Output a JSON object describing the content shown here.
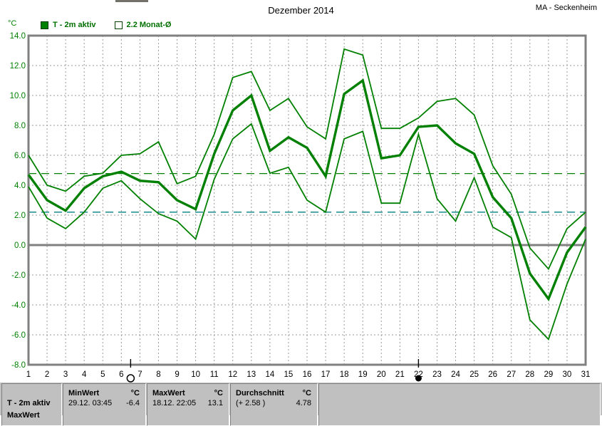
{
  "header": {
    "title": "Dezember 2014",
    "station": "MA - Seckenheim",
    "unit_label": "°C"
  },
  "legend": {
    "items": [
      {
        "label": "T - 2m aktiv",
        "swatch": "filled-green-square",
        "color": "#008000"
      },
      {
        "label": "2.2 Monat-Ø",
        "swatch": "outline-square",
        "color": "#008000"
      }
    ]
  },
  "chart_data": {
    "type": "line",
    "title": "Dezember 2014",
    "xlabel": "",
    "ylabel": "°C",
    "x": [
      1,
      2,
      3,
      4,
      5,
      6,
      7,
      8,
      9,
      10,
      11,
      12,
      13,
      14,
      15,
      16,
      17,
      18,
      19,
      20,
      21,
      22,
      23,
      24,
      25,
      26,
      27,
      28,
      29,
      30,
      31
    ],
    "ylim": [
      -8,
      14
    ],
    "ytick_labels": [
      "14.0",
      "12.0",
      "10.0",
      "8.0",
      "6.0",
      "4.0",
      "2.0",
      "0.0",
      "-2.0",
      "-4.0",
      "-6.0",
      "-8.0"
    ],
    "ytick_values": [
      14,
      12,
      10,
      8,
      6,
      4,
      2,
      0,
      -2,
      -4,
      -6,
      -8
    ],
    "grid": "dashed-gray-both-axes",
    "line_color": "#008000",
    "series": [
      {
        "name": "daily-max",
        "width": "thin",
        "values": [
          6.0,
          4.0,
          3.6,
          4.6,
          4.8,
          6.0,
          6.1,
          6.9,
          4.1,
          4.6,
          7.4,
          11.2,
          11.6,
          9.0,
          9.8,
          7.9,
          7.1,
          13.1,
          12.7,
          7.8,
          7.8,
          8.5,
          9.6,
          9.8,
          8.7,
          5.3,
          3.4,
          -0.2,
          -1.6,
          1.1,
          2.2
        ]
      },
      {
        "name": "daily-mean-T-2m-aktiv",
        "width": "thick",
        "values": [
          4.7,
          3.0,
          2.3,
          3.8,
          4.6,
          4.9,
          4.3,
          4.2,
          3.0,
          2.4,
          6.1,
          9.0,
          10.0,
          6.3,
          7.2,
          6.5,
          4.6,
          10.1,
          11.0,
          5.8,
          6.0,
          7.9,
          8.0,
          6.8,
          6.1,
          3.2,
          1.8,
          -1.9,
          -3.6,
          -0.5,
          1.2
        ]
      },
      {
        "name": "daily-min",
        "width": "thin",
        "values": [
          3.9,
          1.8,
          1.1,
          2.2,
          3.8,
          4.3,
          3.1,
          2.1,
          1.6,
          0.4,
          4.4,
          7.1,
          8.1,
          4.8,
          5.2,
          3.0,
          2.2,
          7.1,
          7.6,
          2.8,
          2.8,
          7.4,
          3.1,
          1.6,
          4.5,
          1.2,
          0.5,
          -5.0,
          -6.3,
          -2.6,
          0.4
        ]
      }
    ],
    "reference_lines": [
      {
        "name": "monthly-average-actual",
        "value": 4.78,
        "color": "#008000",
        "style": "dashed"
      },
      {
        "name": "long-term-month-average",
        "value": 2.2,
        "color": "#008080",
        "style": "dashed"
      }
    ],
    "moon_markers": [
      {
        "day": 6.5,
        "symbol": "open-circle"
      },
      {
        "day": 22,
        "symbol": "filled-circle"
      }
    ],
    "legend_entries": [
      "T - 2m aktiv",
      "2.2 Monat-Ø"
    ]
  },
  "status_bar": {
    "row_label": "T - 2m aktiv",
    "clipped_next_row_label": "MaxWert",
    "cells": [
      {
        "header": "MinWert",
        "unit": "°C",
        "datetime": "29.12.  03:45",
        "value": "-6.4"
      },
      {
        "header": "MaxWert",
        "unit": "°C",
        "datetime": "18.12.  22:05",
        "value": "13.1"
      },
      {
        "header": "Durchschnitt",
        "unit": "°C",
        "datetime": "(+ 2.58 )",
        "value": "4.78"
      }
    ]
  }
}
